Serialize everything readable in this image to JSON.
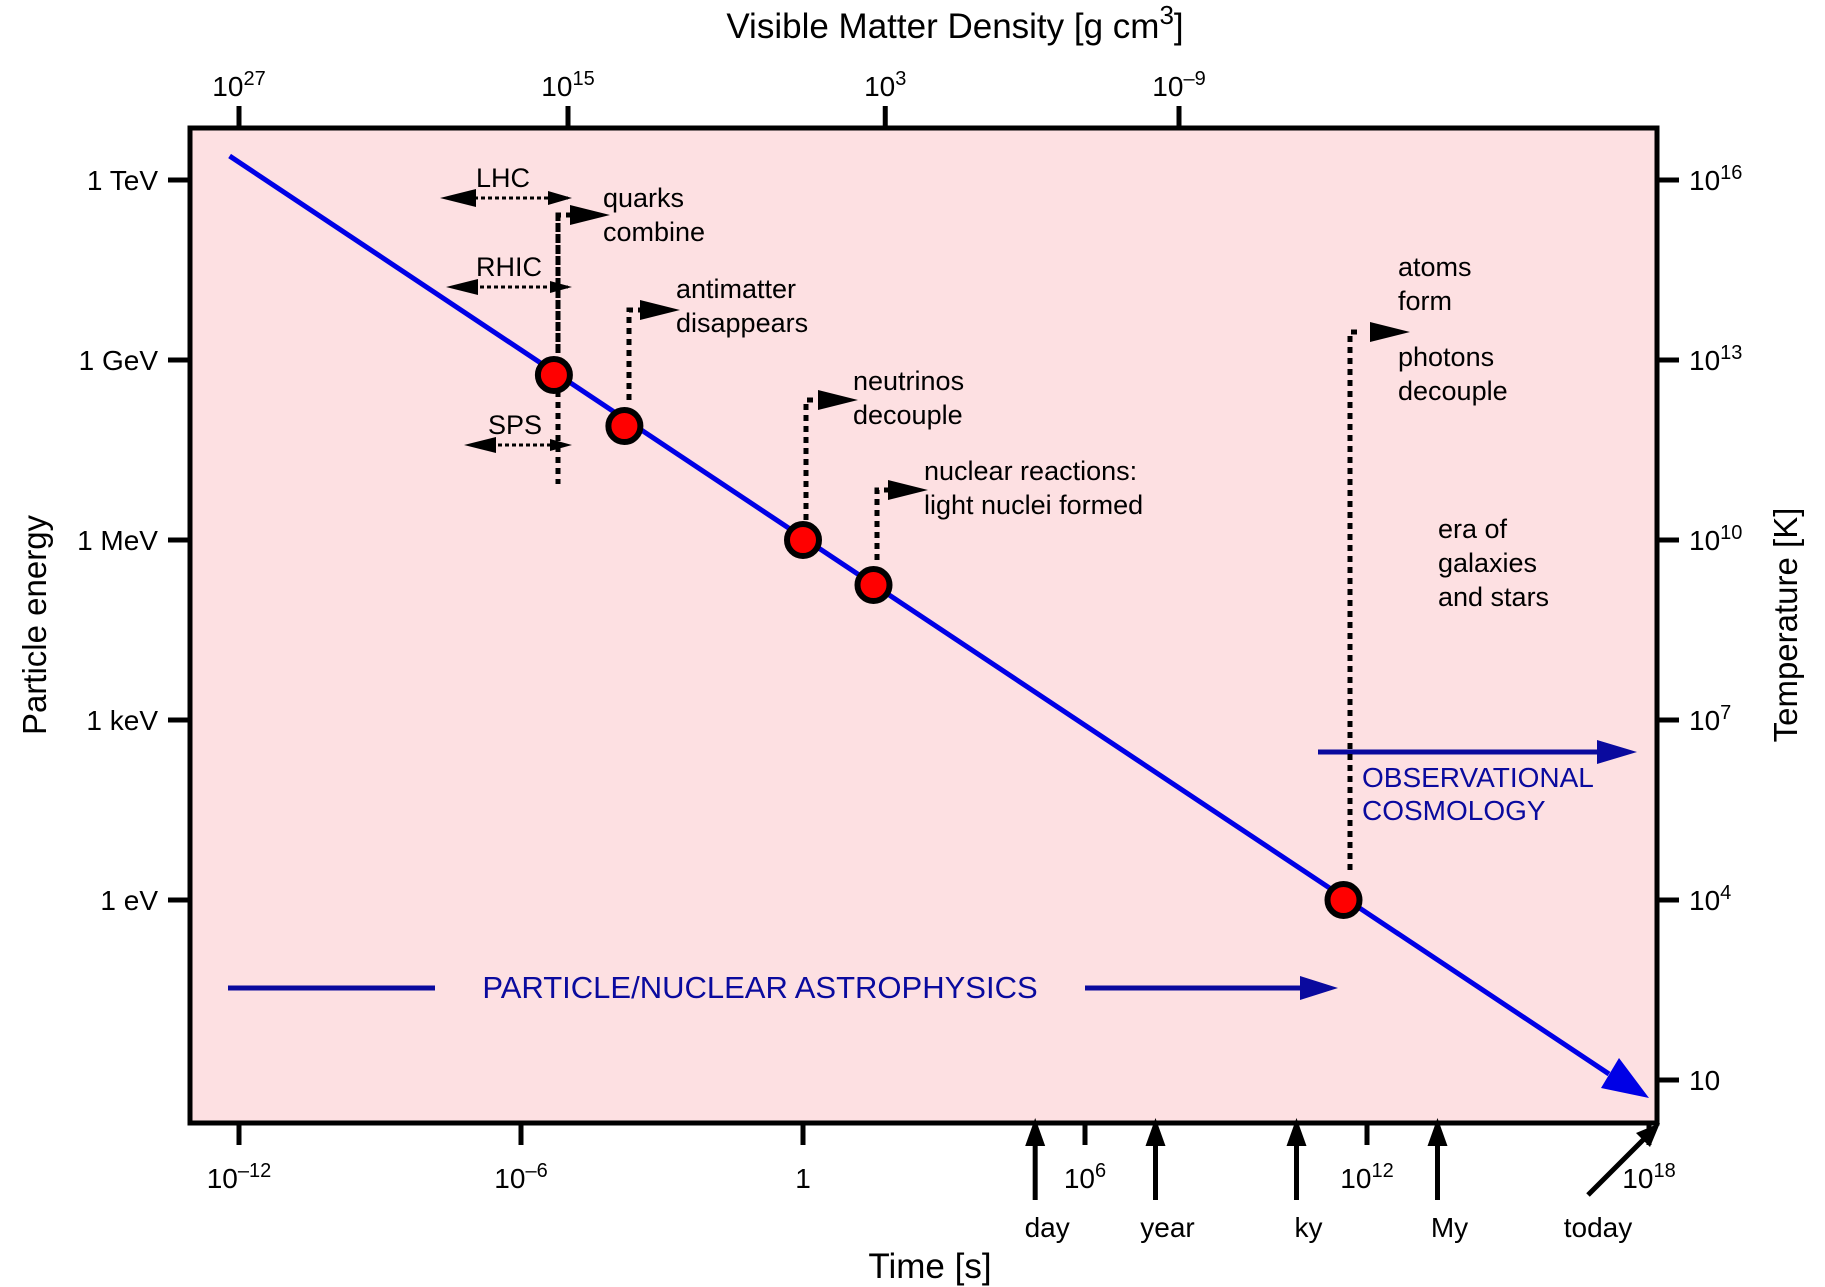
{
  "chart_data": {
    "type": "line",
    "title": "",
    "top_axis": {
      "label": "Visible Matter Density [g cm",
      "label_exp": "3",
      "label_close": "]",
      "ticks": [
        {
          "base": "10",
          "exp": "27",
          "log_t": -12
        },
        {
          "base": "10",
          "exp": "15",
          "log_t": -5
        },
        {
          "base": "10",
          "exp": "3",
          "log_t": 1.75
        },
        {
          "base": "10",
          "exp": "–9",
          "log_t": 8
        }
      ]
    },
    "x_axis": {
      "label": "Time [s]",
      "scale": "log",
      "range_log10": [
        -13,
        18
      ],
      "ticks": [
        {
          "base": "10",
          "exp": "–12",
          "log": -12
        },
        {
          "base": "10",
          "exp": "–6",
          "log": -6
        },
        {
          "base": "1",
          "exp": "",
          "log": 0
        },
        {
          "base": "10",
          "exp": "6",
          "log": 6
        },
        {
          "base": "10",
          "exp": "12",
          "log": 12
        },
        {
          "base": "10",
          "exp": "18",
          "log": 18
        }
      ],
      "time_markers": [
        {
          "label": "day",
          "log_t": 4.94
        },
        {
          "label": "year",
          "log_t": 7.5
        },
        {
          "label": "ky",
          "log_t": 10.5
        },
        {
          "label": "My",
          "log_t": 13.5
        },
        {
          "label": "today",
          "log_t": 17.6
        }
      ]
    },
    "y_axis": {
      "label": "Particle energy",
      "scale": "log",
      "ticks": [
        {
          "label": "1 TeV",
          "log_eV": 12
        },
        {
          "label": "1 GeV",
          "log_eV": 9
        },
        {
          "label": "1 MeV",
          "log_eV": 6
        },
        {
          "label": "1 keV",
          "log_eV": 3
        },
        {
          "label": "1 eV",
          "log_eV": 0
        }
      ]
    },
    "right_axis": {
      "label": "Temperature [K]",
      "ticks": [
        {
          "base": "10",
          "exp": "16",
          "log_eV": 12
        },
        {
          "base": "10",
          "exp": "13",
          "log_eV": 9
        },
        {
          "base": "10",
          "exp": "10",
          "log_eV": 6
        },
        {
          "base": "10",
          "exp": "7",
          "log_eV": 3
        },
        {
          "base": "10",
          "exp": "4",
          "log_eV": 0
        },
        {
          "base": "10",
          "exp": "",
          "log_eV": -3
        }
      ]
    },
    "series": [
      {
        "x_log10_time_s": [
          -12.2,
          18
        ],
        "y_log10_energy_eV": [
          12.4,
          -3.3
        ]
      }
    ],
    "events": [
      {
        "lines": [
          "quarks",
          "combine"
        ],
        "log_t": -5.3,
        "log_eV": 8.75
      },
      {
        "lines": [
          "antimatter",
          "disappears"
        ],
        "log_t": -3.8,
        "log_eV": 7.9
      },
      {
        "lines": [
          "neutrinos",
          "decouple"
        ],
        "log_t": 0,
        "log_eV": 6.0
      },
      {
        "lines": [
          "nuclear reactions:",
          "light nuclei formed"
        ],
        "log_t": 1.5,
        "log_eV": 5.25
      },
      {
        "lines": [
          "atoms",
          "form",
          "photons",
          "decouple"
        ],
        "log_t": 11.5,
        "log_eV": 0.0
      }
    ],
    "accelerators": [
      {
        "label": "LHC"
      },
      {
        "label": "RHIC"
      },
      {
        "label": "SPS"
      }
    ],
    "annotations": {
      "era": [
        "era of",
        "galaxies",
        "and stars"
      ],
      "particle_astro": "PARTICLE/NUCLEAR ASTROPHYSICS",
      "obs_cosmo": [
        "OBSERVATIONAL",
        "COSMOLOGY"
      ]
    },
    "colors": {
      "plot_bg": "#fde0e2",
      "line": "#0000e6",
      "marker": "#ff0000",
      "annotation_blue": "#0a0a9e"
    }
  }
}
